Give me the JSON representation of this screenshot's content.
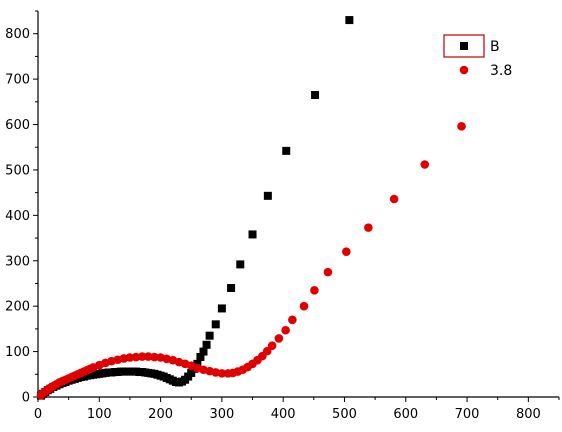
{
  "chart_data": {
    "type": "scatter",
    "title": "",
    "xlabel": "",
    "ylabel": "",
    "xlim": [
      0,
      850
    ],
    "ylim": [
      0,
      850
    ],
    "x_ticks": [
      0,
      100,
      200,
      300,
      400,
      500,
      600,
      700,
      800
    ],
    "y_ticks": [
      0,
      100,
      200,
      300,
      400,
      500,
      600,
      700,
      800
    ],
    "x_tick_labels": [
      "0",
      "100",
      "200",
      "300",
      "400",
      "500",
      "600",
      "700",
      "800"
    ],
    "y_tick_labels": [
      "0",
      "100",
      "200",
      "300",
      "400",
      "500",
      "600",
      "700",
      "800"
    ],
    "grid": false,
    "legend_position": "top-right",
    "series": [
      {
        "name": "B",
        "marker": "square",
        "color": "#000000",
        "points": [
          [
            5,
            3
          ],
          [
            8,
            7
          ],
          [
            12,
            11
          ],
          [
            16,
            15
          ],
          [
            20,
            18
          ],
          [
            25,
            22
          ],
          [
            30,
            25
          ],
          [
            35,
            28
          ],
          [
            40,
            31
          ],
          [
            45,
            33
          ],
          [
            50,
            36
          ],
          [
            55,
            38
          ],
          [
            60,
            40
          ],
          [
            65,
            42
          ],
          [
            70,
            44
          ],
          [
            75,
            45
          ],
          [
            80,
            47
          ],
          [
            85,
            48
          ],
          [
            90,
            49
          ],
          [
            95,
            50
          ],
          [
            100,
            51
          ],
          [
            105,
            52
          ],
          [
            110,
            53
          ],
          [
            115,
            54
          ],
          [
            120,
            54
          ],
          [
            125,
            55
          ],
          [
            130,
            55
          ],
          [
            135,
            56
          ],
          [
            140,
            56
          ],
          [
            145,
            56
          ],
          [
            150,
            56
          ],
          [
            155,
            56
          ],
          [
            160,
            56
          ],
          [
            165,
            55
          ],
          [
            170,
            55
          ],
          [
            175,
            54
          ],
          [
            180,
            53
          ],
          [
            185,
            52
          ],
          [
            190,
            51
          ],
          [
            195,
            49
          ],
          [
            200,
            47
          ],
          [
            205,
            45
          ],
          [
            210,
            42
          ],
          [
            215,
            39
          ],
          [
            220,
            36
          ],
          [
            225,
            33
          ],
          [
            230,
            32
          ],
          [
            235,
            34
          ],
          [
            240,
            38
          ],
          [
            245,
            45
          ],
          [
            250,
            53
          ],
          [
            255,
            62
          ],
          [
            260,
            73
          ],
          [
            265,
            88
          ],
          [
            270,
            100
          ],
          [
            275,
            115
          ],
          [
            280,
            135
          ],
          [
            290,
            160
          ],
          [
            300,
            195
          ],
          [
            315,
            240
          ],
          [
            330,
            292
          ],
          [
            350,
            358
          ],
          [
            375,
            443
          ],
          [
            405,
            542
          ],
          [
            452,
            665
          ],
          [
            508,
            830
          ]
        ]
      },
      {
        "name": "3.8",
        "marker": "circle",
        "color": "#e00000",
        "points": [
          [
            5,
            4
          ],
          [
            8,
            8
          ],
          [
            12,
            12
          ],
          [
            16,
            16
          ],
          [
            20,
            20
          ],
          [
            25,
            24
          ],
          [
            30,
            28
          ],
          [
            35,
            32
          ],
          [
            40,
            35
          ],
          [
            45,
            38
          ],
          [
            50,
            41
          ],
          [
            55,
            44
          ],
          [
            60,
            47
          ],
          [
            65,
            50
          ],
          [
            70,
            53
          ],
          [
            75,
            56
          ],
          [
            80,
            59
          ],
          [
            85,
            62
          ],
          [
            90,
            65
          ],
          [
            100,
            70
          ],
          [
            110,
            75
          ],
          [
            120,
            79
          ],
          [
            130,
            82
          ],
          [
            140,
            85
          ],
          [
            150,
            87
          ],
          [
            160,
            88
          ],
          [
            170,
            89
          ],
          [
            180,
            89
          ],
          [
            190,
            88
          ],
          [
            200,
            87
          ],
          [
            210,
            84
          ],
          [
            220,
            81
          ],
          [
            230,
            77
          ],
          [
            240,
            73
          ],
          [
            250,
            69
          ],
          [
            260,
            64
          ],
          [
            270,
            60
          ],
          [
            280,
            57
          ],
          [
            290,
            54
          ],
          [
            300,
            52
          ],
          [
            310,
            52
          ],
          [
            318,
            53
          ],
          [
            326,
            56
          ],
          [
            334,
            60
          ],
          [
            342,
            66
          ],
          [
            350,
            73
          ],
          [
            358,
            81
          ],
          [
            366,
            90
          ],
          [
            374,
            101
          ],
          [
            382,
            113
          ],
          [
            393,
            129
          ],
          [
            404,
            147
          ],
          [
            415,
            170
          ],
          [
            434,
            200
          ],
          [
            451,
            235
          ],
          [
            473,
            275
          ],
          [
            503,
            320
          ],
          [
            539,
            373
          ],
          [
            581,
            436
          ],
          [
            631,
            512
          ],
          [
            691,
            596
          ]
        ]
      }
    ]
  },
  "legend": {
    "items": [
      {
        "label": "B",
        "marker": "square",
        "color": "#000000"
      },
      {
        "label": "3.8",
        "marker": "circle",
        "color": "#e00000"
      }
    ],
    "highlight_color": "#c00000"
  }
}
